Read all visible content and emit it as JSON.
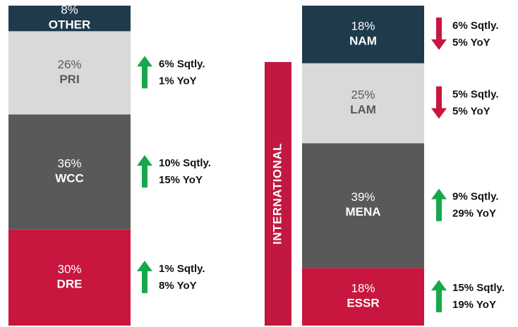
{
  "chart_data": [
    {
      "type": "stacked_bar",
      "categories": [
        "OTHER",
        "PRI",
        "WCC",
        "DRE"
      ],
      "values": [
        8,
        26,
        36,
        30
      ],
      "value_labels": [
        "8%",
        "26%",
        "36%",
        "30%"
      ],
      "colors": [
        "#1f3a4b",
        "#d9d9d9",
        "#595959",
        "#c8163e"
      ],
      "ylim": [
        0,
        100
      ],
      "annotations": [
        null,
        [
          "6% Sqtly.",
          "1% YoY"
        ],
        [
          "10% Sqtly.",
          "15% YoY"
        ],
        [
          "1% Sqtly.",
          "8% YoY"
        ]
      ],
      "arrows": [
        null,
        "up",
        "up",
        "up"
      ],
      "arrow_colors": {
        "up": "#17a84b",
        "down": "#c8163e"
      }
    },
    {
      "type": "stacked_bar",
      "side_label": "INTERNATIONAL",
      "side_label_color": "#c0183f",
      "categories": [
        "NAM",
        "LAM",
        "MENA",
        "ESSR"
      ],
      "values": [
        18,
        25,
        39,
        18
      ],
      "value_labels": [
        "18%",
        "25%",
        "39%",
        "18%"
      ],
      "colors": [
        "#1f3a4b",
        "#d9d9d9",
        "#595959",
        "#c8163e"
      ],
      "ylim": [
        0,
        100
      ],
      "annotations": [
        [
          "6% Sqtly.",
          "5% YoY"
        ],
        [
          "5% Sqtly.",
          "5% YoY"
        ],
        [
          "9% Sqtly.",
          "29% YoY"
        ],
        [
          "15% Sqtly.",
          "19% YoY"
        ]
      ],
      "arrows": [
        "down",
        "down",
        "up",
        "up"
      ],
      "arrow_colors": {
        "up": "#17a84b",
        "down": "#c8163e"
      }
    }
  ]
}
